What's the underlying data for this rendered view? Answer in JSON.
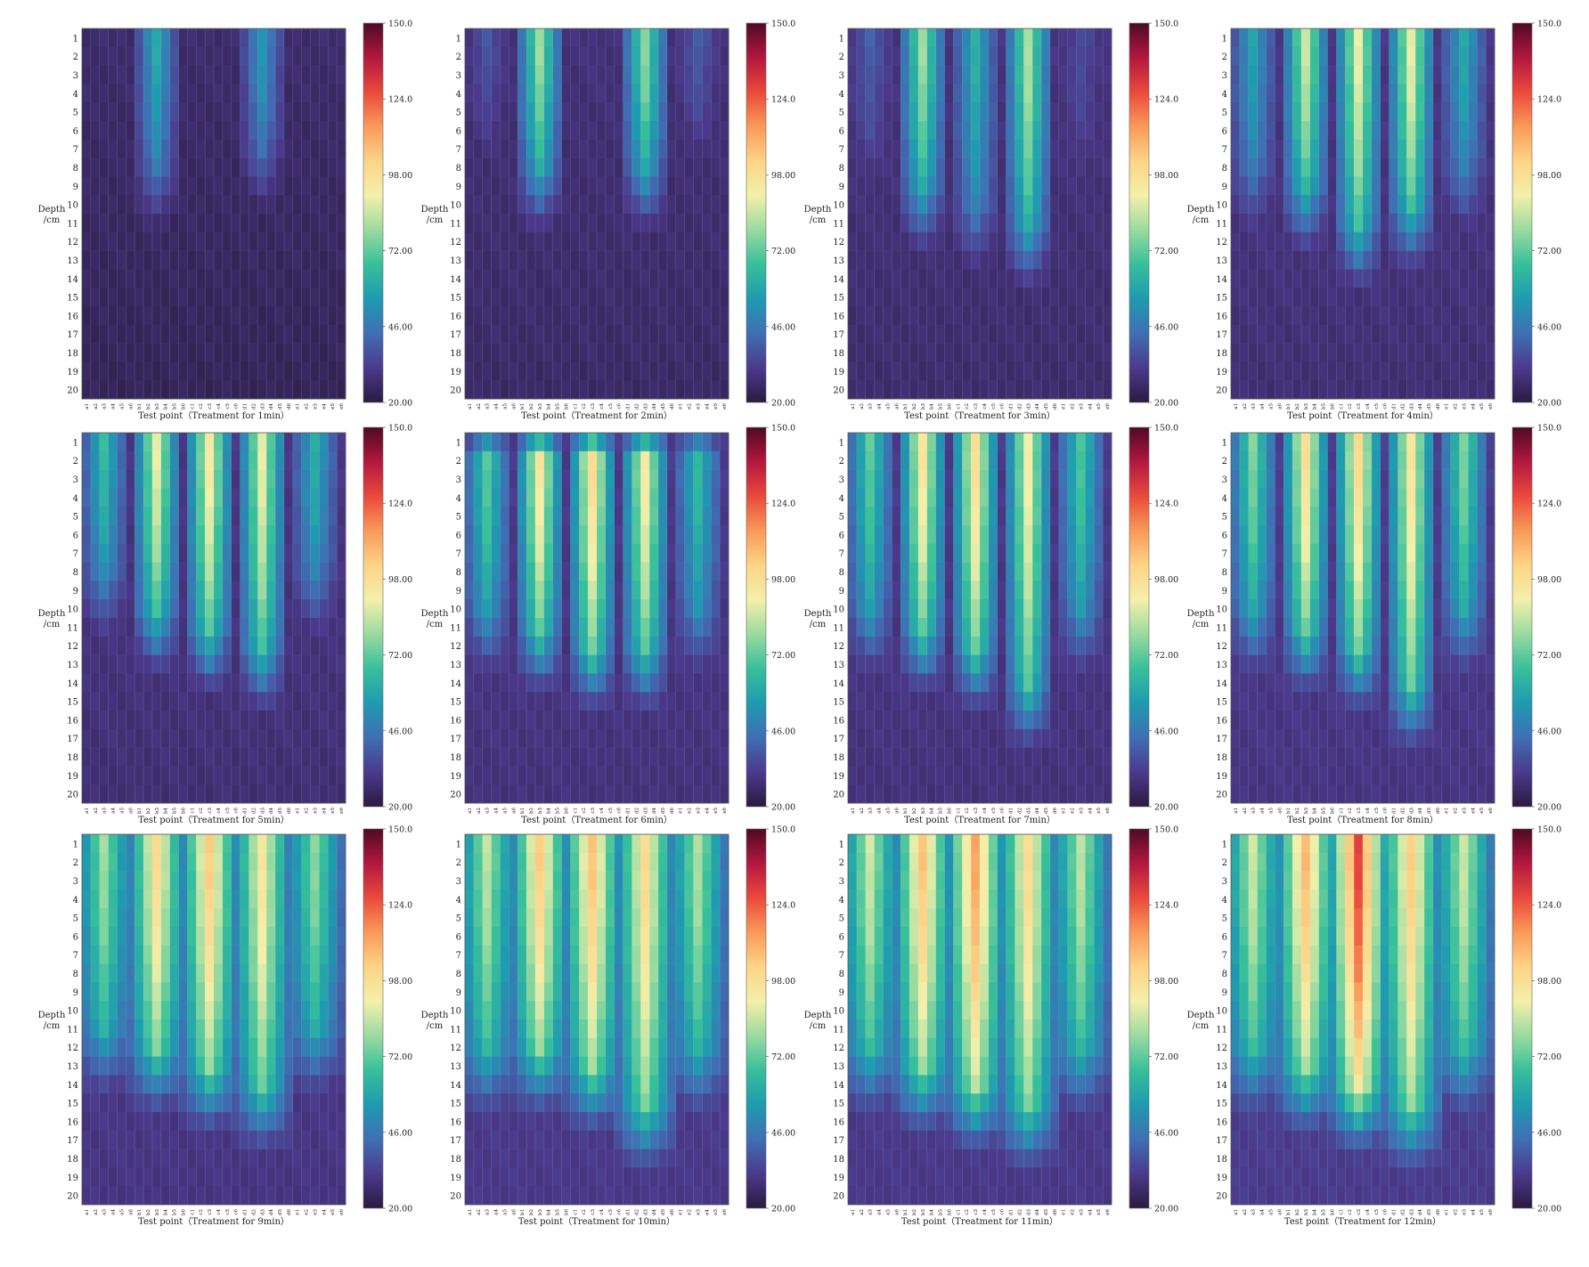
{
  "figure": {
    "panel_count": 12,
    "layout": "4 columns x 3 rows"
  },
  "chart_data": {
    "type": "heatmap",
    "ylabel_line1": "Depth",
    "ylabel_line2": "/cm",
    "xlabel_prefix": "Test point（Treatment for ",
    "xlabel_suffix": "min）",
    "y_categories": [
      "1",
      "2",
      "3",
      "4",
      "5",
      "6",
      "7",
      "8",
      "9",
      "10",
      "11",
      "12",
      "13",
      "14",
      "15",
      "16",
      "17",
      "18",
      "19",
      "20"
    ],
    "x_categories": [
      "a1",
      "a2",
      "a3",
      "a4",
      "a5",
      "a6",
      "b1",
      "b2",
      "b3",
      "b4",
      "b5",
      "b6",
      "c1",
      "c2",
      "c3",
      "c4",
      "c5",
      "c6",
      "d1",
      "d2",
      "d3",
      "d4",
      "d5",
      "d6",
      "e1",
      "e2",
      "e3",
      "e4",
      "e5",
      "e6"
    ],
    "color_scale": {
      "min": 20.0,
      "max": 150.0,
      "tick_labels": [
        "150.0",
        "124.0",
        "98.00",
        "72.00",
        "46.00",
        "20.00"
      ],
      "tick_values": [
        150,
        124,
        98,
        72,
        46,
        20
      ],
      "stops": [
        "#2b1a3f",
        "#4b3a8c",
        "#3f6fb4",
        "#1e9bb0",
        "#37c09a",
        "#9adba0",
        "#f3f0aa",
        "#fdd487",
        "#f99a5a",
        "#ea4a3b",
        "#b3173f",
        "#4e0a25"
      ]
    },
    "hot_columns": [
      2,
      8,
      14,
      20,
      26
    ],
    "panels": [
      {
        "minutes": 1,
        "peak": [
          22,
          60,
          24,
          55,
          22
        ],
        "reach": [
          3,
          8,
          3,
          7,
          3
        ],
        "hot": 2,
        "bg": 24
      },
      {
        "minutes": 2,
        "peak": [
          38,
          80,
          26,
          78,
          40
        ],
        "reach": [
          5,
          8,
          4,
          8,
          5
        ],
        "hot": 2,
        "bg": 26
      },
      {
        "minutes": 3,
        "peak": [
          40,
          80,
          62,
          82,
          36
        ],
        "reach": [
          6,
          9,
          10,
          11,
          6
        ],
        "hot": 2,
        "bg": 27
      },
      {
        "minutes": 4,
        "peak": [
          58,
          86,
          90,
          90,
          60
        ],
        "reach": [
          8,
          9,
          11,
          10,
          8
        ],
        "hot": 2,
        "bg": 28
      },
      {
        "minutes": 5,
        "peak": [
          66,
          90,
          94,
          90,
          62
        ],
        "reach": [
          8,
          10,
          11,
          12,
          8
        ],
        "hot": 2,
        "bg": 28
      },
      {
        "minutes": 6,
        "peak": [
          72,
          96,
          100,
          94,
          66
        ],
        "reach": [
          10,
          11,
          12,
          12,
          10
        ],
        "hot": 2,
        "bg": 29
      },
      {
        "minutes": 7,
        "peak": [
          72,
          96,
          98,
          92,
          70
        ],
        "reach": [
          10,
          11,
          12,
          14,
          10
        ],
        "hot": 2,
        "bg": 29
      },
      {
        "minutes": 8,
        "peak": [
          76,
          98,
          100,
          96,
          76
        ],
        "reach": [
          10,
          11,
          12,
          14,
          10
        ],
        "hot": 2,
        "bg": 30
      },
      {
        "minutes": 9,
        "peak": [
          80,
          100,
          104,
          96,
          78
        ],
        "reach": [
          11,
          12,
          13,
          14,
          11
        ],
        "hot": 3,
        "bg": 30
      },
      {
        "minutes": 10,
        "peak": [
          84,
          104,
          106,
          100,
          82
        ],
        "reach": [
          12,
          12,
          13,
          15,
          12
        ],
        "hot": 3,
        "bg": 31
      },
      {
        "minutes": 11,
        "peak": [
          86,
          106,
          112,
          100,
          84
        ],
        "reach": [
          12,
          13,
          14,
          15,
          12
        ],
        "hot": 3,
        "bg": 31
      },
      {
        "minutes": 12,
        "peak": [
          86,
          108,
          128,
          104,
          86
        ],
        "reach": [
          12,
          13,
          14,
          15,
          12
        ],
        "hot": 3,
        "bg": 32
      }
    ]
  }
}
